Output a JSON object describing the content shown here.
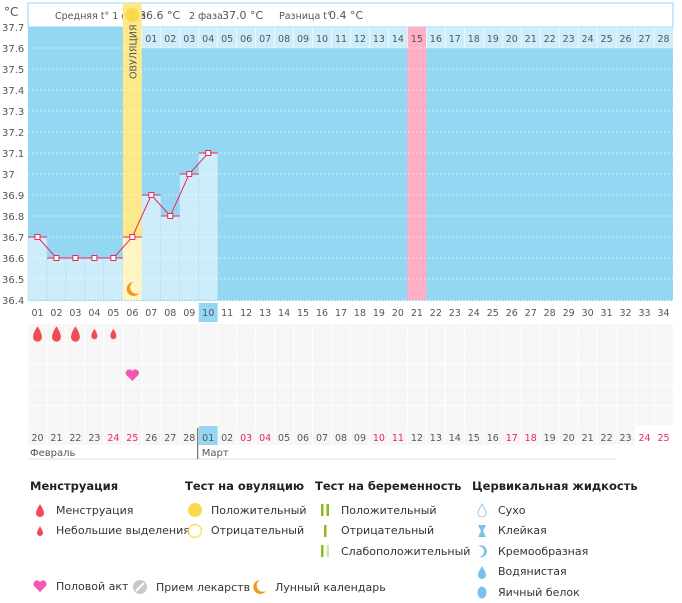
{
  "header": {
    "unit": "°C",
    "phase1_label": "Средняя t° 1 фаза",
    "phase1_value": "36.6 °C",
    "phase2_label": "2 фаза",
    "phase2_value": "37.0 °C",
    "diff_label": "Разница t°",
    "diff_value": "0.4 °C"
  },
  "chart_data": {
    "type": "line",
    "ylabel": "°C",
    "ylim": [
      36.4,
      37.7
    ],
    "yticks": [
      "36.4",
      "36.5",
      "36.6",
      "36.7",
      "36.8",
      "36.9",
      "37",
      "37.1",
      "37.2",
      "37.3",
      "37.4",
      "37.5",
      "37.6",
      "37.7"
    ],
    "cycle_days": [
      "01",
      "02",
      "03",
      "04",
      "05",
      "06",
      "07",
      "08",
      "09",
      "10",
      "11",
      "12",
      "13",
      "14",
      "15",
      "16",
      "17",
      "18",
      "19",
      "20",
      "21",
      "22",
      "23",
      "24",
      "25",
      "26",
      "27",
      "28",
      "29",
      "30",
      "31",
      "32",
      "33",
      "34"
    ],
    "temperatures": [
      36.7,
      36.6,
      36.6,
      36.6,
      36.6,
      36.7,
      36.9,
      36.8,
      37.0,
      37.1
    ],
    "current_day": 10,
    "ovulation_day": 6,
    "ovulation_label": "ОВУЛЯЦИЯ",
    "expected_period_day": 21,
    "phase2_days": [
      "01",
      "02",
      "03",
      "04",
      "05",
      "06",
      "07",
      "08",
      "09",
      "10",
      "11",
      "12",
      "13",
      "14",
      "15",
      "16",
      "17",
      "18",
      "19",
      "20",
      "21",
      "22",
      "23",
      "24",
      "25",
      "26",
      "27",
      "28"
    ],
    "phase2_highlight": "15",
    "dates": [
      "20",
      "21",
      "22",
      "23",
      "24",
      "25",
      "26",
      "27",
      "28",
      "01",
      "02",
      "03",
      "04",
      "05",
      "06",
      "07",
      "08",
      "09",
      "10",
      "11",
      "12",
      "13",
      "14",
      "15",
      "16",
      "17",
      "18",
      "19",
      "20",
      "21",
      "22",
      "23",
      "24",
      "25"
    ],
    "weekend_dates_idx": [
      4,
      5,
      11,
      12,
      18,
      19,
      25,
      26,
      32,
      33
    ],
    "months": [
      "Февраль",
      "Март"
    ],
    "month_start_idx": [
      0,
      9
    ],
    "menstruation": {
      "heavy_days": [
        1,
        2,
        3
      ],
      "light_days": [
        4,
        5
      ]
    },
    "intercourse_days": [
      6
    ],
    "moon_days": [
      6
    ],
    "ovulation_test_positive_days": [
      6
    ],
    "colors": {
      "plot_bg": "#93d7f2",
      "bar": "#cdedfb",
      "ovulation": "#fde98a",
      "ovulation_lower": "#fff4c4",
      "period_expected": "#ffaec3",
      "line": "#e8285a",
      "weekend": "#e8285a",
      "today": "#93d7f2"
    }
  },
  "legend": {
    "menstruation": {
      "title": "Менструация",
      "items": [
        "Менструация",
        "Небольшие выделения"
      ]
    },
    "ovulation_test": {
      "title": "Тест на овуляцию",
      "items": [
        "Положительный",
        "Отрицательный"
      ]
    },
    "pregnancy_test": {
      "title": "Тест на беременность",
      "items": [
        "Положительный",
        "Отрицательный",
        "Слабоположительный"
      ]
    },
    "cervical_fluid": {
      "title": "Цервикальная жидкость",
      "items": [
        "Сухо",
        "Клейкая",
        "Кремообразная",
        "Водянистая",
        "Яичный белок"
      ]
    },
    "bottom": [
      "Половой акт",
      "Прием лекарств",
      "Лунный календарь"
    ]
  }
}
